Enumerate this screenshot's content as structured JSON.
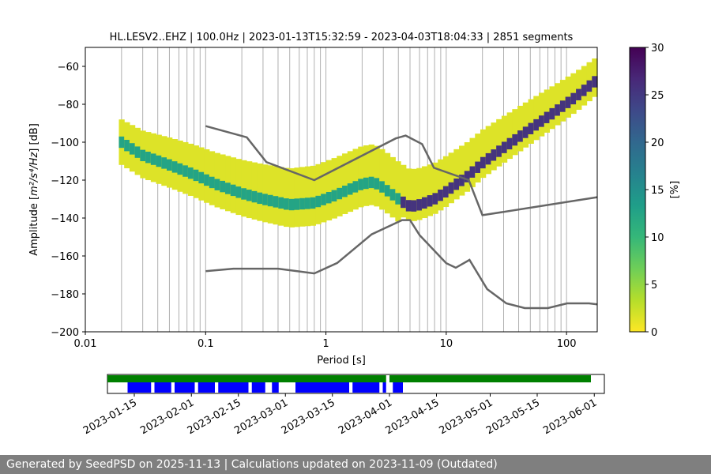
{
  "chart_data": [
    {
      "type": "heatmap",
      "title": "HL.LESV2..EHZ | 100.0Hz | 2023-01-13T15:32:59 - 2023-04-03T18:04:33 | 2851 segments",
      "xlabel": "Period [s]",
      "ylabel_prefix": "Amplitude [",
      "ylabel_math": "m²/s⁴/Hz",
      "ylabel_suffix": "] [dB]",
      "xscale": "log",
      "xlim": [
        0.01,
        180
      ],
      "ylim": [
        -200,
        -50
      ],
      "grid": "x-minor",
      "x_ticks": [
        {
          "value": 0.01,
          "label": "0.01"
        },
        {
          "value": 0.1,
          "label": "0.1"
        },
        {
          "value": 1,
          "label": "1"
        },
        {
          "value": 10,
          "label": "10"
        },
        {
          "value": 100,
          "label": "100"
        }
      ],
      "y_ticks": [
        {
          "value": -60,
          "label": "−60"
        },
        {
          "value": -80,
          "label": "−80"
        },
        {
          "value": -100,
          "label": "−100"
        },
        {
          "value": -120,
          "label": "−120"
        },
        {
          "value": -140,
          "label": "−140"
        },
        {
          "value": -160,
          "label": "−160"
        },
        {
          "value": -180,
          "label": "−180"
        },
        {
          "value": -200,
          "label": "−200"
        }
      ],
      "psd_mode_curve": {
        "period": [
          0.02,
          0.03,
          0.05,
          0.08,
          0.12,
          0.2,
          0.3,
          0.5,
          0.8,
          1.2,
          2,
          2.5,
          3,
          4,
          5,
          6,
          8,
          10,
          15,
          20,
          30,
          50,
          80,
          120,
          180
        ],
        "db": [
          -100,
          -107,
          -112,
          -117,
          -122,
          -127,
          -130,
          -133,
          -132,
          -128,
          -122,
          -121,
          -124,
          -130,
          -134,
          -133,
          -130,
          -126,
          -118,
          -111,
          -103,
          -93,
          -84,
          -76,
          -67
        ]
      },
      "peterson_nhnm": {
        "period": [
          0.1,
          0.22,
          0.32,
          0.8,
          3.8,
          4.6,
          6.3,
          7.9,
          15.4,
          20,
          180
        ],
        "db": [
          -91.5,
          -97.4,
          -110.5,
          -120,
          -98,
          -96.5,
          -101,
          -113.5,
          -120,
          -138.5,
          -129
        ]
      },
      "peterson_nlnm": {
        "period": [
          0.1,
          0.17,
          0.4,
          0.8,
          1.24,
          2.4,
          4.3,
          5,
          6,
          10,
          12,
          15.6,
          21.9,
          31.6,
          45,
          70,
          101,
          154,
          180
        ],
        "db": [
          -168,
          -166.7,
          -166.7,
          -169.2,
          -163.7,
          -148.6,
          -141.1,
          -141.1,
          -149,
          -163.8,
          -166.2,
          -162.1,
          -177.5,
          -185,
          -187.5,
          -187.5,
          -185,
          -185,
          -185.5
        ]
      },
      "colorbar": {
        "label": "[%]",
        "range": [
          0,
          30
        ],
        "ticks": [
          {
            "value": 0,
            "label": "0"
          },
          {
            "value": 5,
            "label": "5"
          },
          {
            "value": 10,
            "label": "10"
          },
          {
            "value": 15,
            "label": "15"
          },
          {
            "value": 20,
            "label": "20"
          },
          {
            "value": 25,
            "label": "25"
          },
          {
            "value": 30,
            "label": "30"
          }
        ],
        "colors": [
          "#fde725",
          "#b5de2b",
          "#6ece58",
          "#35b779",
          "#1f9e89",
          "#26828e",
          "#31688e",
          "#3e4989",
          "#482878",
          "#440154"
        ]
      },
      "line_color": "#666666"
    },
    {
      "type": "timeline",
      "x_ticks": [
        "2023-01-15",
        "2023-02-01",
        "2023-02-15",
        "2023-03-01",
        "2023-03-15",
        "2023-04-01",
        "2023-04-15",
        "2023-05-01",
        "2023-05-15",
        "2023-06-01"
      ],
      "available_color": "#008000",
      "processed_color": "#0000ff",
      "available_ranges": [
        [
          "2023-01-07",
          "2023-03-31"
        ],
        [
          "2023-04-01",
          "2023-05-31"
        ]
      ],
      "processed_ranges": [
        [
          "2023-01-13",
          "2023-01-20"
        ],
        [
          "2023-01-21",
          "2023-01-26"
        ],
        [
          "2023-01-27",
          "2023-02-02"
        ],
        [
          "2023-02-03",
          "2023-02-08"
        ],
        [
          "2023-02-09",
          "2023-02-18"
        ],
        [
          "2023-02-19",
          "2023-02-23"
        ],
        [
          "2023-02-25",
          "2023-02-27"
        ],
        [
          "2023-03-04",
          "2023-03-20"
        ],
        [
          "2023-03-21",
          "2023-03-29"
        ],
        [
          "2023-03-30",
          "2023-03-31"
        ],
        [
          "2023-04-02",
          "2023-04-05"
        ]
      ],
      "date_range": [
        "2023-01-07",
        "2023-06-04"
      ]
    }
  ],
  "footer": {
    "text": "Generated by SeedPSD on 2025-11-13 | Calculations updated on 2023-11-09 (Outdated)"
  }
}
